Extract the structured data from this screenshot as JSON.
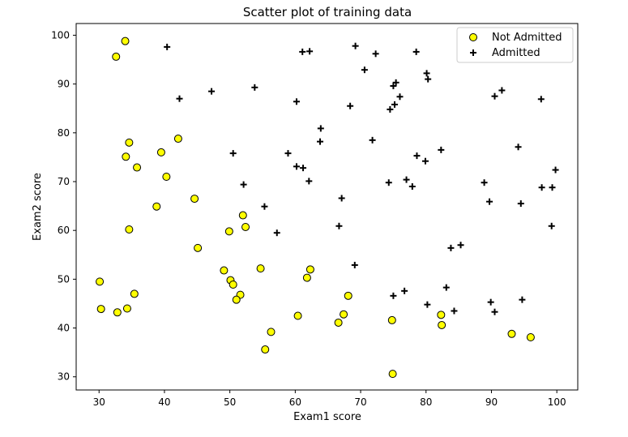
{
  "chart_data": {
    "type": "scatter",
    "title": "Scatter plot of training data",
    "xlabel": "Exam1 score",
    "ylabel": "Exam2 score",
    "xlim": [
      26.5,
      103.2
    ],
    "ylim": [
      27.3,
      102.4
    ],
    "xticks": [
      30,
      40,
      50,
      60,
      70,
      80,
      90,
      100
    ],
    "yticks": [
      30,
      40,
      50,
      60,
      70,
      80,
      90,
      100
    ],
    "grid": false,
    "legend_position": "top-right",
    "series": [
      {
        "name": "Not Admitted",
        "marker": "circle",
        "color": "#ffff00",
        "edge_color": "#000000",
        "points": [
          [
            34.0,
            98.8
          ],
          [
            32.6,
            95.6
          ],
          [
            34.6,
            78.0
          ],
          [
            34.1,
            75.1
          ],
          [
            35.8,
            72.9
          ],
          [
            39.5,
            76.0
          ],
          [
            42.1,
            78.8
          ],
          [
            40.3,
            71.0
          ],
          [
            38.8,
            64.9
          ],
          [
            44.6,
            66.5
          ],
          [
            34.6,
            60.2
          ],
          [
            45.1,
            56.4
          ],
          [
            49.9,
            59.8
          ],
          [
            52.0,
            63.1
          ],
          [
            52.4,
            60.7
          ],
          [
            30.1,
            49.5
          ],
          [
            30.3,
            43.9
          ],
          [
            32.8,
            43.2
          ],
          [
            34.3,
            44.0
          ],
          [
            35.4,
            47.0
          ],
          [
            49.1,
            51.8
          ],
          [
            50.1,
            49.8
          ],
          [
            50.5,
            48.9
          ],
          [
            51.6,
            46.8
          ],
          [
            51.0,
            45.8
          ],
          [
            54.7,
            52.2
          ],
          [
            62.3,
            52.0
          ],
          [
            61.8,
            50.3
          ],
          [
            56.3,
            39.2
          ],
          [
            55.4,
            35.6
          ],
          [
            60.4,
            42.5
          ],
          [
            66.6,
            41.1
          ],
          [
            67.4,
            42.8
          ],
          [
            68.1,
            46.6
          ],
          [
            74.8,
            41.6
          ],
          [
            82.3,
            42.7
          ],
          [
            82.4,
            40.6
          ],
          [
            93.1,
            38.8
          ],
          [
            96.0,
            38.1
          ],
          [
            74.9,
            30.6
          ]
        ]
      },
      {
        "name": "Admitted",
        "marker": "plus",
        "color": "#000000",
        "points": [
          [
            40.4,
            97.6
          ],
          [
            61.1,
            96.6
          ],
          [
            62.2,
            96.7
          ],
          [
            69.2,
            97.8
          ],
          [
            72.3,
            96.2
          ],
          [
            78.5,
            96.6
          ],
          [
            70.6,
            92.9
          ],
          [
            80.1,
            92.2
          ],
          [
            80.3,
            91.0
          ],
          [
            75.0,
            89.6
          ],
          [
            75.4,
            90.3
          ],
          [
            90.5,
            87.5
          ],
          [
            91.6,
            88.7
          ],
          [
            97.6,
            86.9
          ],
          [
            47.2,
            88.5
          ],
          [
            53.8,
            89.3
          ],
          [
            42.3,
            87.0
          ],
          [
            60.2,
            86.4
          ],
          [
            68.4,
            85.5
          ],
          [
            74.5,
            84.8
          ],
          [
            75.2,
            85.8
          ],
          [
            76.0,
            87.4
          ],
          [
            63.9,
            80.9
          ],
          [
            63.8,
            78.2
          ],
          [
            71.8,
            78.5
          ],
          [
            82.3,
            76.5
          ],
          [
            94.1,
            77.1
          ],
          [
            50.5,
            75.8
          ],
          [
            58.9,
            75.8
          ],
          [
            78.6,
            75.3
          ],
          [
            79.9,
            74.2
          ],
          [
            60.2,
            73.1
          ],
          [
            61.2,
            72.8
          ],
          [
            62.1,
            70.1
          ],
          [
            74.3,
            69.8
          ],
          [
            77.0,
            70.4
          ],
          [
            77.9,
            69.0
          ],
          [
            88.9,
            69.8
          ],
          [
            97.7,
            68.8
          ],
          [
            99.3,
            68.8
          ],
          [
            99.8,
            72.4
          ],
          [
            52.1,
            69.4
          ],
          [
            67.1,
            66.6
          ],
          [
            89.7,
            65.9
          ],
          [
            94.5,
            65.5
          ],
          [
            55.3,
            64.9
          ],
          [
            66.7,
            60.9
          ],
          [
            99.2,
            60.9
          ],
          [
            57.2,
            59.5
          ],
          [
            85.3,
            57.0
          ],
          [
            83.8,
            56.4
          ],
          [
            69.1,
            52.9
          ],
          [
            83.1,
            48.3
          ],
          [
            76.7,
            47.6
          ],
          [
            75.0,
            46.6
          ],
          [
            94.7,
            45.8
          ],
          [
            89.9,
            45.3
          ],
          [
            80.2,
            44.8
          ],
          [
            84.3,
            43.5
          ],
          [
            90.5,
            43.3
          ]
        ]
      }
    ]
  }
}
